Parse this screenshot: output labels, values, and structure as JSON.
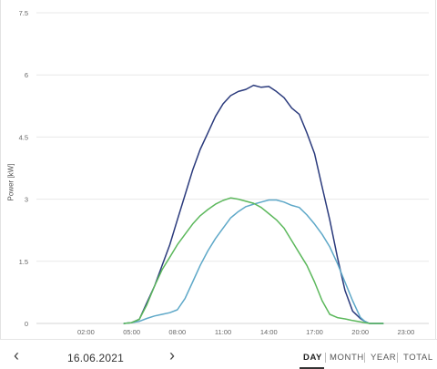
{
  "chart_data": {
    "type": "line",
    "ylabel": "Power [kW]",
    "ylim": [
      0,
      7.5
    ],
    "yticks": [
      "7.5",
      "6",
      "4.5",
      "3",
      "1.5",
      "0"
    ],
    "ytick_values": [
      7.5,
      6,
      4.5,
      3,
      1.5,
      0
    ],
    "xticks": [
      "02:00",
      "05:00",
      "08:00",
      "11:00",
      "14:00",
      "17:00",
      "20:00",
      "23:00"
    ],
    "xtick_values": [
      2,
      5,
      8,
      11,
      14,
      17,
      20,
      23
    ],
    "xlim": [
      -1.25,
      24.5
    ],
    "grid": true,
    "series": [
      {
        "color": "#2a3a7c",
        "x": [
          4.5,
          5.0,
          5.5,
          6.0,
          6.5,
          7.0,
          7.5,
          8.0,
          8.5,
          9.0,
          9.5,
          10.0,
          10.5,
          11.0,
          11.5,
          12.0,
          12.5,
          13.0,
          13.5,
          14.0,
          14.5,
          15.0,
          15.5,
          16.0,
          16.5,
          17.0,
          17.5,
          18.0,
          18.5,
          19.0,
          19.5,
          20.0,
          20.3,
          20.6,
          21.5
        ],
        "y": [
          0.0,
          0.02,
          0.1,
          0.5,
          0.9,
          1.4,
          1.9,
          2.5,
          3.1,
          3.7,
          4.2,
          4.6,
          5.0,
          5.3,
          5.5,
          5.6,
          5.65,
          5.75,
          5.7,
          5.72,
          5.6,
          5.45,
          5.2,
          5.05,
          4.6,
          4.1,
          3.3,
          2.5,
          1.6,
          0.8,
          0.3,
          0.12,
          0.05,
          0.0,
          0.0
        ]
      },
      {
        "color": "#5ea8c8",
        "x": [
          4.5,
          5.0,
          5.5,
          6.0,
          6.5,
          7.0,
          7.5,
          8.0,
          8.5,
          9.0,
          9.5,
          10.0,
          10.5,
          11.0,
          11.5,
          12.0,
          12.5,
          13.0,
          13.5,
          14.0,
          14.5,
          15.0,
          15.5,
          16.0,
          16.5,
          17.0,
          17.5,
          18.0,
          18.5,
          19.0,
          19.5,
          20.0,
          20.3,
          20.6,
          21.5
        ],
        "y": [
          0.0,
          0.02,
          0.05,
          0.12,
          0.18,
          0.22,
          0.26,
          0.33,
          0.6,
          1.0,
          1.4,
          1.75,
          2.05,
          2.3,
          2.55,
          2.7,
          2.82,
          2.88,
          2.93,
          2.98,
          2.98,
          2.93,
          2.85,
          2.8,
          2.62,
          2.4,
          2.15,
          1.85,
          1.45,
          1.0,
          0.55,
          0.15,
          0.05,
          0.0,
          0.0
        ]
      },
      {
        "color": "#5cb85c",
        "x": [
          4.5,
          5.0,
          5.5,
          6.0,
          6.5,
          7.0,
          7.5,
          8.0,
          8.5,
          9.0,
          9.5,
          10.0,
          10.5,
          11.0,
          11.5,
          12.0,
          12.5,
          13.0,
          13.5,
          14.0,
          14.5,
          15.0,
          15.5,
          16.0,
          16.5,
          17.0,
          17.5,
          18.0,
          18.5,
          19.0,
          19.5,
          20.0,
          20.3,
          20.6,
          21.5
        ],
        "y": [
          0.0,
          0.02,
          0.1,
          0.45,
          0.9,
          1.3,
          1.6,
          1.9,
          2.15,
          2.4,
          2.6,
          2.75,
          2.88,
          2.97,
          3.03,
          3.0,
          2.95,
          2.9,
          2.8,
          2.65,
          2.5,
          2.3,
          2.0,
          1.7,
          1.4,
          1.0,
          0.55,
          0.22,
          0.14,
          0.11,
          0.07,
          0.04,
          0.02,
          0.0,
          0.0
        ]
      }
    ]
  },
  "footer": {
    "prev_arrow": "‹",
    "date": "16.06.2021",
    "next_arrow": "›",
    "periods": [
      "DAY",
      "MONTH",
      "YEAR",
      "TOTAL"
    ],
    "active_period": "DAY"
  }
}
